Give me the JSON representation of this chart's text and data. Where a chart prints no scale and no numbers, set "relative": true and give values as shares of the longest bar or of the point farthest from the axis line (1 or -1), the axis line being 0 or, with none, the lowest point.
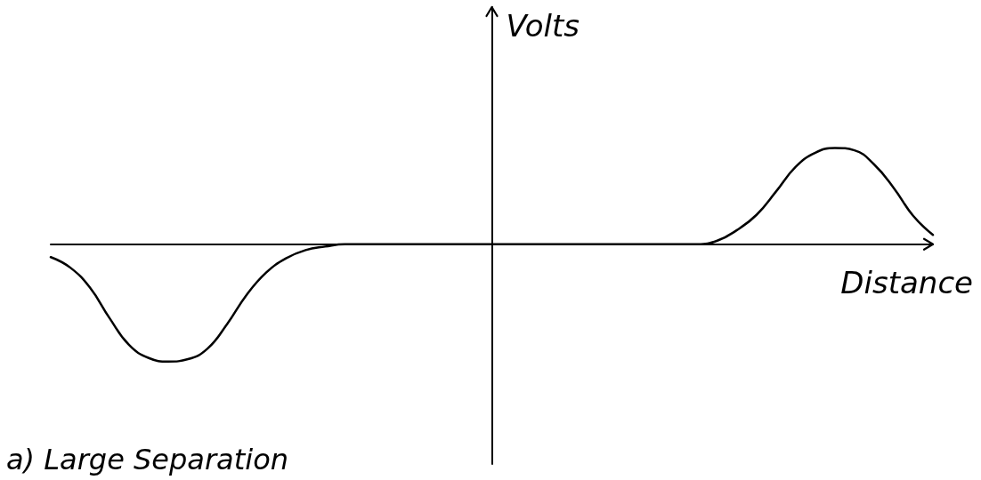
{
  "chart_data": {
    "type": "line",
    "relative": true,
    "title": "a) Large Separation",
    "xlabel": "Distance",
    "ylabel": "Volts",
    "categories": [
      null,
      null,
      null,
      null,
      null,
      null,
      null,
      null,
      null,
      null,
      null,
      null,
      null,
      null,
      null,
      null,
      null,
      null,
      null,
      null,
      null,
      null,
      null,
      null,
      null,
      null,
      null,
      null,
      null,
      null,
      null,
      null,
      null,
      null,
      null,
      null,
      null,
      null,
      null,
      null,
      null,
      null,
      null,
      null,
      null,
      null
    ],
    "series": [
      {
        "color": "#000000",
        "values": [
          -0.11,
          -0.2,
          -0.37,
          -0.63,
          -0.86,
          -0.97,
          -1,
          -0.98,
          -0.89,
          -0.68,
          -0.43,
          -0.24,
          -0.12,
          -0.05,
          -0.02,
          0,
          0,
          0,
          0,
          0,
          0,
          0,
          0,
          0,
          0,
          0,
          0,
          0,
          0,
          0,
          0,
          0,
          0,
          0,
          0.03,
          0.12,
          0.25,
          0.45,
          0.66,
          0.78,
          0.82,
          0.8,
          0.68,
          0.48,
          0.24,
          0.08
        ]
      }
    ],
    "marker": "none",
    "line_style": "solid"
  }
}
